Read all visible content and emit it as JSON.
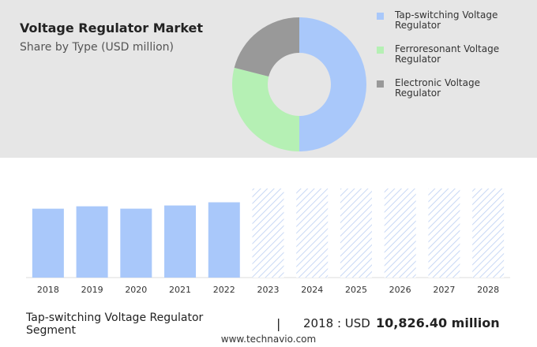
{
  "chart_data": [
    {
      "type": "donut",
      "title": "Voltage Regulator Market",
      "subtitle": "Share by Type (USD million)",
      "categories": [
        "Tap-switching Voltage Regulator",
        "Ferroresonant Voltage Regulator",
        "Electronic Voltage Regulator"
      ],
      "values": [
        50,
        29,
        21
      ],
      "colors": [
        "#a9c8fa",
        "#b5f0b4",
        "#999999"
      ]
    },
    {
      "type": "bar",
      "categories": [
        "2018",
        "2019",
        "2020",
        "2021",
        "2022",
        "2023",
        "2024",
        "2025",
        "2026",
        "2027",
        "2028"
      ],
      "values": [
        10826.4,
        11200,
        10830,
        11330,
        11830,
        null,
        null,
        null,
        null,
        null,
        null
      ],
      "color": "#a9c8fa",
      "ylim": [
        0,
        14000
      ]
    }
  ],
  "footer": {
    "segment": "Tap-switching Voltage Regulator Segment",
    "separator": "|",
    "year_label": "2018 : USD",
    "value": "10,826.40 million",
    "source": "www.technavio.com"
  }
}
